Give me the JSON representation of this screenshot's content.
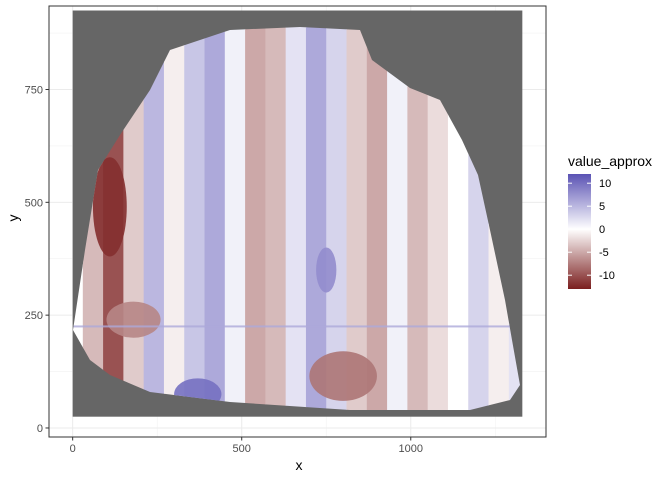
{
  "chart_data": {
    "type": "heatmap",
    "title": "",
    "xlabel": "x",
    "ylabel": "y",
    "xlim": [
      -70,
      1400
    ],
    "ylim": [
      -20,
      935
    ],
    "x_ticks": [
      0,
      500,
      1000
    ],
    "y_ticks": [
      0,
      250,
      500,
      750
    ],
    "grid": true,
    "na_fill_color": "#666666",
    "data_extent": {
      "x": [
        0,
        1330
      ],
      "y": [
        25,
        925
      ]
    },
    "color_scale": {
      "name": "value_approx",
      "type": "diverging",
      "low_color": "#7a1e1e",
      "mid_color": "#ffffff",
      "high_color": "#5b53b4",
      "limits": [
        -13,
        12
      ],
      "breaks": [
        10,
        5,
        0,
        -5,
        -10
      ],
      "break_labels": [
        "10",
        "5",
        "0",
        "-5",
        "-10"
      ]
    },
    "legend_position": "right",
    "column_profile": {
      "x": [
        0,
        60,
        120,
        180,
        240,
        300,
        360,
        420,
        480,
        540,
        600,
        660,
        720,
        780,
        840,
        900,
        960,
        1020,
        1080,
        1140,
        1200,
        1260,
        1320
      ],
      "value": [
        0,
        -4,
        -10,
        -3,
        5,
        -1,
        4,
        6,
        1,
        -5,
        -4,
        2,
        6,
        3,
        -3,
        -5,
        1,
        -4,
        -2,
        0,
        3,
        -1,
        2
      ]
    },
    "notable_regions": [
      {
        "x": [
          60,
          160
        ],
        "y": [
          380,
          600
        ],
        "value": -12
      },
      {
        "x": [
          300,
          440
        ],
        "y": [
          40,
          110
        ],
        "value": 10
      },
      {
        "x": [
          700,
          900
        ],
        "y": [
          60,
          170
        ],
        "value": -8
      },
      {
        "x": [
          100,
          260
        ],
        "y": [
          200,
          280
        ],
        "value": -7
      },
      {
        "x": [
          720,
          780
        ],
        "y": [
          300,
          400
        ],
        "value": 8
      }
    ]
  }
}
